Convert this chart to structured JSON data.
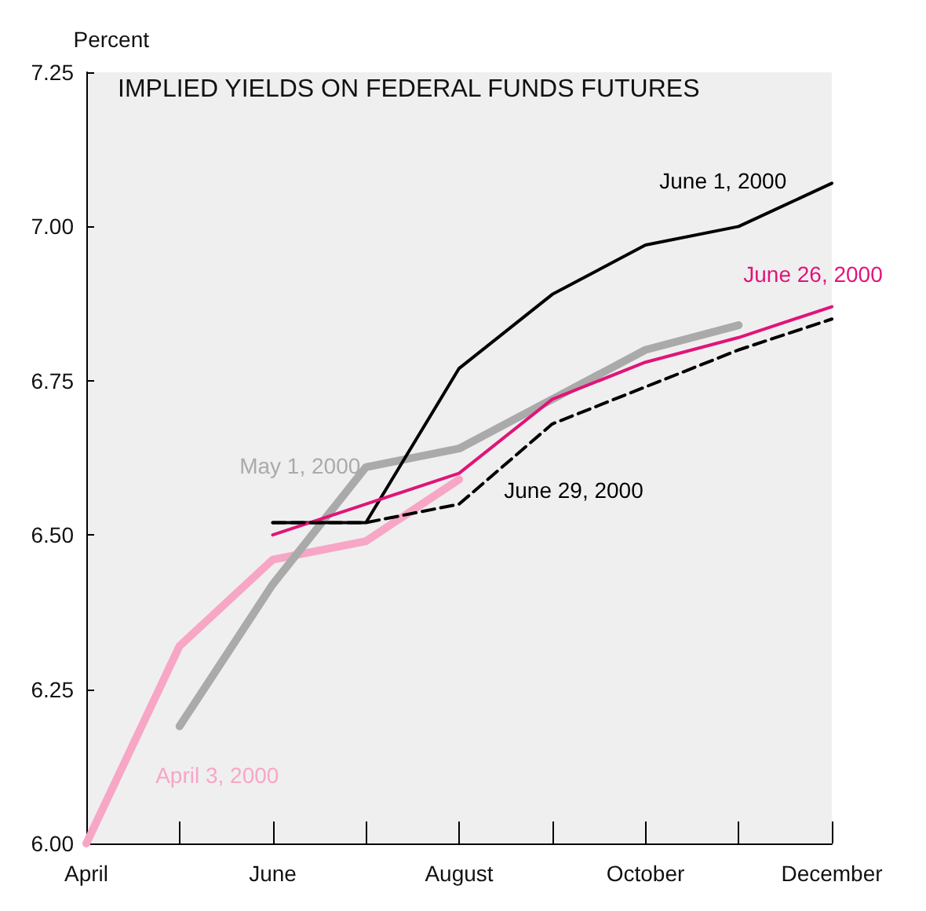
{
  "chart_data": {
    "type": "line",
    "title": "IMPLIED YIELDS ON FEDERAL FUNDS FUTURES",
    "ylabel": "Percent",
    "categories": [
      "April",
      null,
      "June",
      null,
      "August",
      null,
      "October",
      null,
      "December"
    ],
    "series": [
      {
        "name": "April 3, 2000",
        "color": "#f7a6c6",
        "values": [
          6.0,
          6.32,
          6.46,
          6.49,
          6.59,
          null,
          null,
          null,
          null
        ]
      },
      {
        "name": "May 1, 2000",
        "color": "#aaaaaa",
        "values": [
          null,
          6.19,
          6.42,
          6.61,
          6.64,
          6.72,
          6.8,
          6.84,
          null
        ]
      },
      {
        "name": "June 1, 2000",
        "color": "#000000",
        "values": [
          null,
          null,
          6.52,
          6.52,
          6.77,
          6.89,
          6.97,
          7.0,
          7.07
        ]
      },
      {
        "name": "June 26, 2000",
        "color": "#e0147a",
        "values": [
          null,
          null,
          6.5,
          6.55,
          6.6,
          6.72,
          6.78,
          6.82,
          6.87
        ]
      },
      {
        "name": "June 29, 2000",
        "color": "#000000",
        "line_style": "dashed",
        "values": [
          null,
          null,
          6.52,
          6.52,
          6.55,
          6.68,
          6.74,
          6.8,
          6.85
        ]
      }
    ],
    "ylim": [
      6.0,
      7.25
    ],
    "yticks": [
      {
        "value": 6.0,
        "label": "6.00"
      },
      {
        "value": 6.25,
        "label": "6.25"
      },
      {
        "value": 6.5,
        "label": "6.50"
      },
      {
        "value": 6.75,
        "label": "6.75"
      },
      {
        "value": 7.0,
        "label": "7.00"
      },
      {
        "value": 7.25,
        "label": "7.25"
      }
    ],
    "grid": false,
    "legend": false,
    "marker": "none",
    "line_style": "solid"
  }
}
